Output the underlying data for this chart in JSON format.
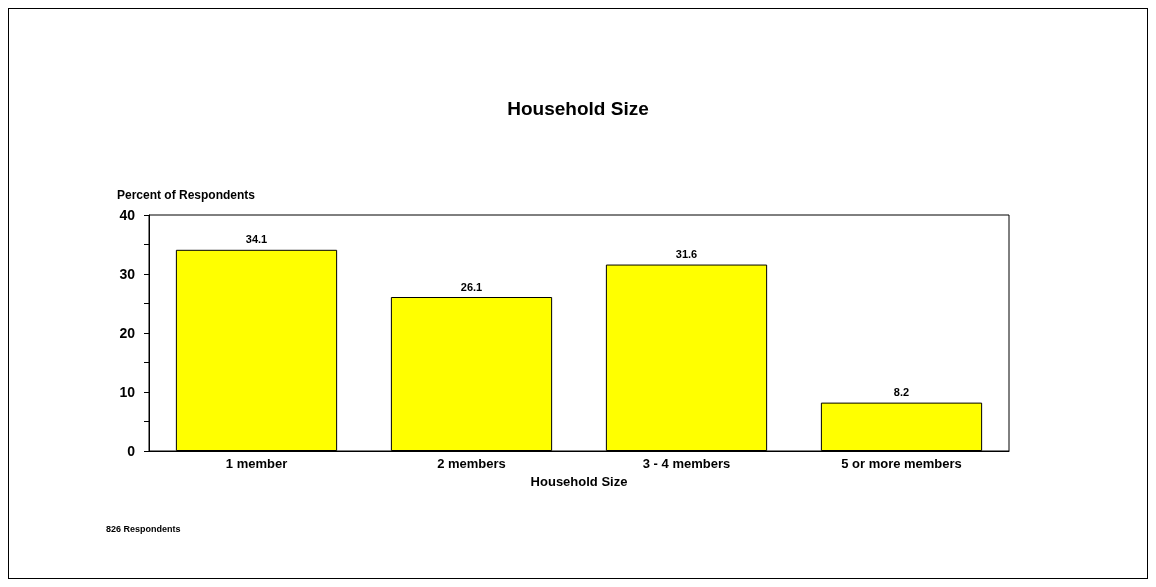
{
  "chart_data": {
    "type": "bar",
    "title": "Household Size",
    "xlabel": "Household Size",
    "ylabel": "Percent of Respondents",
    "categories": [
      "1 member",
      "2 members",
      "3 - 4 members",
      "5 or more members"
    ],
    "values": [
      34.1,
      26.1,
      31.6,
      8.2
    ],
    "color": "#ffff00",
    "data_labels": true,
    "ylim": [
      0,
      40
    ],
    "yticks": [
      0,
      {
        "value": 5,
        "label": null
      },
      10,
      {
        "value": 15,
        "label": null
      },
      20,
      {
        "value": 25,
        "label": null
      },
      30,
      {
        "value": 35,
        "label": null
      },
      40
    ],
    "grid": false,
    "annotations": [
      "826 Respondents"
    ]
  }
}
